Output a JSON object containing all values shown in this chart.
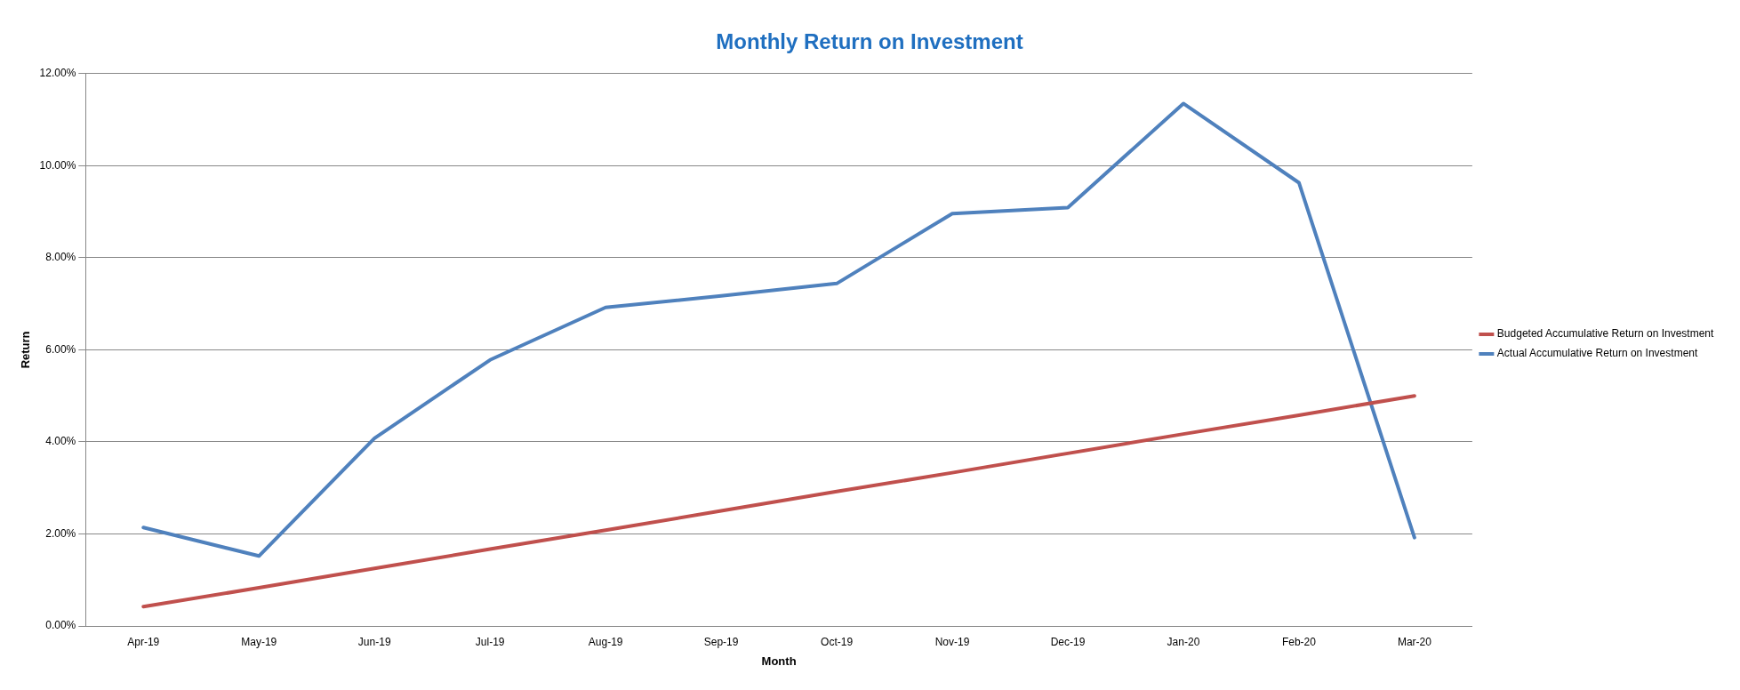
{
  "chart_data": {
    "type": "line",
    "title": "Monthly Return on Investment",
    "xlabel": "Month",
    "ylabel": "Return",
    "categories": [
      "Apr-19",
      "May-19",
      "Jun-19",
      "Jul-19",
      "Aug-19",
      "Sep-19",
      "Oct-19",
      "Nov-19",
      "Dec-19",
      "Jan-20",
      "Feb-20",
      "Mar-20"
    ],
    "series": [
      {
        "name": "Budgeted Accumulative Return on Investment",
        "color": "#c0504d",
        "values": [
          0.42,
          0.83,
          1.25,
          1.67,
          2.08,
          2.5,
          2.92,
          3.33,
          3.75,
          4.17,
          4.58,
          5.0
        ]
      },
      {
        "name": "Actual Accumulative Return on Investment",
        "color": "#4f81bd",
        "values": [
          2.14,
          1.52,
          4.08,
          5.78,
          6.92,
          7.17,
          7.44,
          8.96,
          9.09,
          11.35,
          9.63,
          1.92
        ]
      }
    ],
    "ylim": [
      0,
      12
    ],
    "yticks": [
      {
        "value": 0,
        "label": "0.00%"
      },
      {
        "value": 2,
        "label": "2.00%"
      },
      {
        "value": 4,
        "label": "4.00%"
      },
      {
        "value": 6,
        "label": "6.00%"
      },
      {
        "value": 8,
        "label": "8.00%"
      },
      {
        "value": 10,
        "label": "10.00%"
      },
      {
        "value": 12,
        "label": "12.00%"
      }
    ],
    "grid": "y",
    "legend": "right",
    "marker": "none",
    "line_style": "solid"
  }
}
